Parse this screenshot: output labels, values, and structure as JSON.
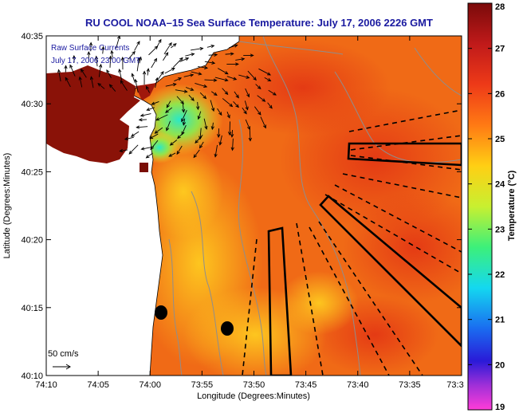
{
  "map": {
    "title": "RU COOL  NOAA–15  Sea Surface Temperature:  July 17, 2006 2226 GMT",
    "legend": {
      "line1": "Raw Surface Currents",
      "line2": "July 17, 2006 23:00 GMT"
    },
    "scale_label": "50 cm/s",
    "x_axis": {
      "label": "Longitude (Degrees:Minutes)",
      "ticks": [
        "74:10",
        "74:05",
        "74:00",
        "73:55",
        "73:50",
        "73:45",
        "73:40",
        "73:35",
        "73:3"
      ]
    },
    "y_axis": {
      "label": "Latitude (Degrees:Minutes)",
      "ticks": [
        "40:35",
        "40:30",
        "40:25",
        "40:20",
        "40:15",
        "40:10"
      ]
    },
    "colorbar": {
      "label": "Temperature (°C)",
      "ticks": [
        "28",
        "27",
        "26",
        "25",
        "24",
        "23",
        "22",
        "21",
        "20",
        "19"
      ],
      "min": 19,
      "max": 28
    }
  }
}
